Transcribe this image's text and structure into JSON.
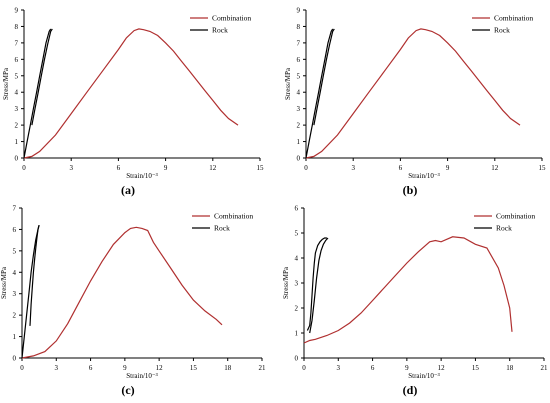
{
  "chart_data": [
    {
      "type": "line",
      "panel_label": "(a)",
      "xlabel": "Strain/10⁻³",
      "ylabel": "Stress/MPa",
      "xlim": [
        0,
        15
      ],
      "ylim": [
        0,
        9
      ],
      "x_ticks": [
        0,
        3,
        6,
        9,
        12,
        15
      ],
      "y_ticks": [
        0,
        1,
        2,
        3,
        4,
        5,
        6,
        7,
        8,
        9
      ],
      "legend": "top-right",
      "series": [
        {
          "name": "Combination",
          "color": "#b03030",
          "x": [
            0,
            0.5,
            1,
            2,
            3,
            4,
            5,
            6,
            6.5,
            7,
            7.3,
            7.6,
            8,
            8.5,
            9,
            9.5,
            10,
            10.5,
            11,
            11.5,
            12,
            12.5,
            13,
            13.6
          ],
          "y": [
            0,
            0.1,
            0.4,
            1.4,
            2.7,
            4.0,
            5.3,
            6.6,
            7.3,
            7.75,
            7.85,
            7.8,
            7.7,
            7.45,
            7.0,
            6.5,
            5.9,
            5.3,
            4.7,
            4.1,
            3.5,
            2.9,
            2.4,
            2.0
          ]
        },
        {
          "name": "Rock",
          "color": "#000000",
          "x": [
            0,
            0.2,
            0.4,
            0.6,
            0.8,
            1.0,
            1.2,
            1.4,
            1.6,
            1.7
          ],
          "y": [
            0,
            1.0,
            2.0,
            3.0,
            4.0,
            5.0,
            6.0,
            7.0,
            7.7,
            7.85
          ]
        },
        {
          "name": "Rock",
          "color": "#000000",
          "x": [
            0.5,
            0.7,
            0.9,
            1.1,
            1.3,
            1.5,
            1.7,
            1.8
          ],
          "y": [
            2.0,
            3.0,
            4.0,
            5.0,
            6.0,
            6.9,
            7.7,
            7.85
          ]
        }
      ]
    },
    {
      "type": "line",
      "panel_label": "(b)",
      "xlabel": "Strain/10⁻³",
      "ylabel": "Stress/MPa",
      "xlim": [
        0,
        15
      ],
      "ylim": [
        0,
        9
      ],
      "x_ticks": [
        0,
        3,
        6,
        9,
        12,
        15
      ],
      "y_ticks": [
        0,
        1,
        2,
        3,
        4,
        5,
        6,
        7,
        8,
        9
      ],
      "legend": "top-right",
      "series": [
        {
          "name": "Combination",
          "color": "#b03030",
          "x": [
            0,
            0.5,
            1,
            2,
            3,
            4,
            5,
            6,
            6.5,
            7,
            7.3,
            7.6,
            8,
            8.5,
            9,
            9.5,
            10,
            10.5,
            11,
            11.5,
            12,
            12.5,
            13,
            13.6
          ],
          "y": [
            0,
            0.1,
            0.4,
            1.4,
            2.7,
            4.0,
            5.3,
            6.6,
            7.3,
            7.75,
            7.85,
            7.8,
            7.7,
            7.45,
            7.0,
            6.5,
            5.9,
            5.3,
            4.7,
            4.1,
            3.5,
            2.9,
            2.4,
            2.0
          ]
        },
        {
          "name": "Rock",
          "color": "#000000",
          "x": [
            0,
            0.2,
            0.4,
            0.6,
            0.8,
            1.0,
            1.2,
            1.4,
            1.6,
            1.7
          ],
          "y": [
            0,
            1.0,
            2.0,
            3.0,
            4.0,
            5.0,
            6.0,
            7.0,
            7.7,
            7.85
          ]
        },
        {
          "name": "Rock",
          "color": "#000000",
          "x": [
            0.5,
            0.7,
            0.9,
            1.1,
            1.3,
            1.5,
            1.7,
            1.8
          ],
          "y": [
            2.0,
            3.0,
            4.0,
            5.0,
            6.0,
            6.9,
            7.7,
            7.85
          ]
        }
      ]
    },
    {
      "type": "line",
      "panel_label": "(c)",
      "xlabel": "Strain/10⁻³",
      "ylabel": "Stress/MPa",
      "xlim": [
        0,
        21
      ],
      "ylim": [
        0,
        7
      ],
      "x_ticks": [
        0,
        3,
        6,
        9,
        12,
        15,
        18,
        21
      ],
      "y_ticks": [
        0,
        1,
        2,
        3,
        4,
        5,
        6,
        7
      ],
      "legend": "top-right",
      "series": [
        {
          "name": "Combination",
          "color": "#b03030",
          "x": [
            0,
            1,
            2,
            3,
            4,
            5,
            6,
            7,
            8,
            9,
            9.5,
            10,
            10.5,
            11,
            11.5,
            12,
            13,
            14,
            15,
            16,
            17,
            17.5
          ],
          "y": [
            0,
            0.1,
            0.3,
            0.8,
            1.6,
            2.6,
            3.6,
            4.5,
            5.3,
            5.85,
            6.05,
            6.1,
            6.05,
            5.95,
            5.4,
            5.0,
            4.2,
            3.4,
            2.7,
            2.2,
            1.8,
            1.55
          ]
        },
        {
          "name": "Rock",
          "color": "#000000",
          "x": [
            0,
            0.2,
            0.4,
            0.6,
            0.8,
            1.0,
            1.2,
            1.4,
            1.5
          ],
          "y": [
            0,
            1.0,
            2.0,
            3.0,
            4.0,
            4.8,
            5.5,
            6.0,
            6.2
          ]
        },
        {
          "name": "Rock",
          "color": "#000000",
          "x": [
            0.7,
            0.8,
            0.9,
            1.0,
            1.1,
            1.2,
            1.3,
            1.4,
            1.5
          ],
          "y": [
            1.5,
            2.5,
            3.3,
            4.0,
            4.6,
            5.1,
            5.6,
            6.0,
            6.2
          ]
        }
      ]
    },
    {
      "type": "line",
      "panel_label": "(d)",
      "xlabel": "Strain/10⁻³",
      "ylabel": "Stress/MPa",
      "xlim": [
        0,
        21
      ],
      "ylim": [
        0,
        6
      ],
      "x_ticks": [
        0,
        3,
        6,
        9,
        12,
        15,
        18,
        21
      ],
      "y_ticks": [
        0,
        1,
        2,
        3,
        4,
        5,
        6
      ],
      "legend": "top-right",
      "series": [
        {
          "name": "Combination",
          "color": "#b03030",
          "x": [
            0,
            0.5,
            1,
            2,
            3,
            4,
            5,
            6,
            7,
            8,
            9,
            10,
            11,
            11.5,
            12,
            13,
            14,
            15,
            16,
            17,
            17.5,
            18,
            18.2
          ],
          "y": [
            0.6,
            0.7,
            0.75,
            0.9,
            1.1,
            1.4,
            1.8,
            2.3,
            2.8,
            3.3,
            3.8,
            4.25,
            4.65,
            4.7,
            4.65,
            4.85,
            4.8,
            4.55,
            4.4,
            3.6,
            2.9,
            2.0,
            1.05
          ]
        },
        {
          "name": "Rock",
          "color": "#000000",
          "x": [
            0.3,
            0.5,
            0.6,
            0.7,
            0.8,
            0.9,
            1.0,
            1.2,
            1.4,
            1.6,
            1.8,
            2.0
          ],
          "y": [
            1.1,
            1.3,
            1.8,
            2.5,
            3.2,
            3.8,
            4.2,
            4.5,
            4.65,
            4.75,
            4.8,
            4.8
          ]
        },
        {
          "name": "Rock",
          "color": "#000000",
          "x": [
            0.5,
            0.7,
            0.9,
            1.1,
            1.3,
            1.5,
            1.7,
            1.9,
            2.1
          ],
          "y": [
            1.0,
            1.5,
            2.3,
            3.2,
            3.9,
            4.3,
            4.55,
            4.7,
            4.8
          ]
        }
      ]
    }
  ]
}
